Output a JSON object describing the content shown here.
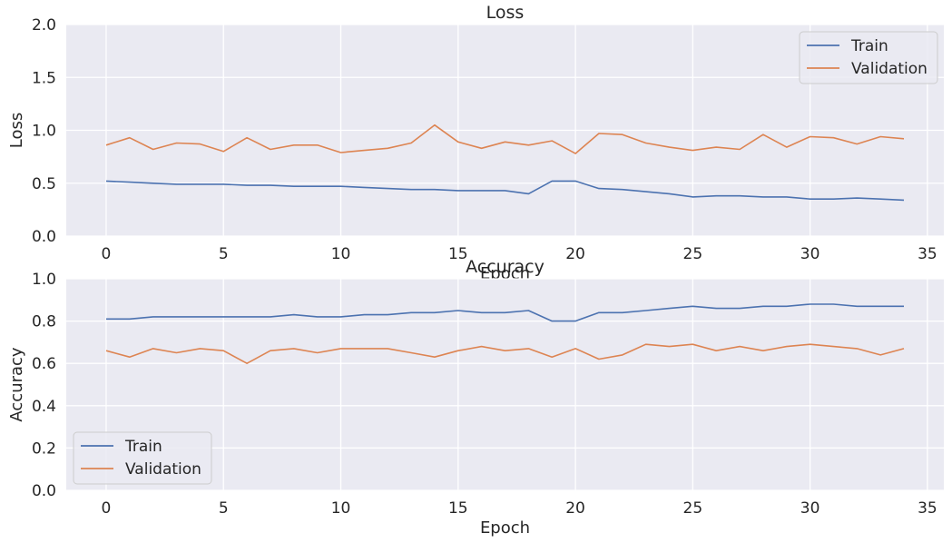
{
  "chart_data": [
    {
      "type": "line",
      "title": "Loss",
      "xlabel": "Epoch",
      "ylabel": "Loss",
      "xlim": [
        -1.7,
        35.7
      ],
      "ylim": [
        0.0,
        2.0
      ],
      "xticks": [
        0,
        5,
        10,
        15,
        20,
        25,
        30,
        35
      ],
      "yticks": [
        "0.0",
        "0.5",
        "1.0",
        "1.5",
        "2.0"
      ],
      "grid": true,
      "legend": "top-right",
      "x": [
        0,
        1,
        2,
        3,
        4,
        5,
        6,
        7,
        8,
        9,
        10,
        11,
        12,
        13,
        14,
        15,
        16,
        17,
        18,
        19,
        20,
        21,
        22,
        23,
        24,
        25,
        26,
        27,
        28,
        29,
        30,
        31,
        32,
        33,
        34
      ],
      "series": [
        {
          "name": "Train",
          "color": "#4c72b0",
          "values": [
            0.52,
            0.51,
            0.5,
            0.49,
            0.49,
            0.49,
            0.48,
            0.48,
            0.47,
            0.47,
            0.47,
            0.46,
            0.45,
            0.44,
            0.44,
            0.43,
            0.43,
            0.43,
            0.4,
            0.52,
            0.52,
            0.45,
            0.44,
            0.42,
            0.4,
            0.37,
            0.38,
            0.38,
            0.37,
            0.37,
            0.35,
            0.35,
            0.36,
            0.35,
            0.34
          ]
        },
        {
          "name": "Validation",
          "color": "#dd8452",
          "values": [
            0.86,
            0.93,
            0.82,
            0.88,
            0.87,
            0.8,
            0.93,
            0.82,
            0.86,
            0.86,
            0.79,
            0.81,
            0.83,
            0.88,
            1.05,
            0.89,
            0.83,
            0.89,
            0.86,
            0.9,
            0.78,
            0.97,
            0.96,
            0.88,
            0.84,
            0.81,
            0.84,
            0.82,
            0.96,
            0.84,
            0.94,
            0.93,
            0.87,
            0.94,
            0.92
          ]
        }
      ]
    },
    {
      "type": "line",
      "title": "Accuracy",
      "xlabel": "Epoch",
      "ylabel": "Accuracy",
      "xlim": [
        -1.7,
        35.7
      ],
      "ylim": [
        0.0,
        1.0
      ],
      "xticks": [
        0,
        5,
        10,
        15,
        20,
        25,
        30,
        35
      ],
      "yticks": [
        "0.0",
        "0.2",
        "0.4",
        "0.6",
        "0.8",
        "1.0"
      ],
      "grid": true,
      "legend": "bottom-left",
      "x": [
        0,
        1,
        2,
        3,
        4,
        5,
        6,
        7,
        8,
        9,
        10,
        11,
        12,
        13,
        14,
        15,
        16,
        17,
        18,
        19,
        20,
        21,
        22,
        23,
        24,
        25,
        26,
        27,
        28,
        29,
        30,
        31,
        32,
        33,
        34
      ],
      "series": [
        {
          "name": "Train",
          "color": "#4c72b0",
          "values": [
            0.81,
            0.81,
            0.82,
            0.82,
            0.82,
            0.82,
            0.82,
            0.82,
            0.83,
            0.82,
            0.82,
            0.83,
            0.83,
            0.84,
            0.84,
            0.85,
            0.84,
            0.84,
            0.85,
            0.8,
            0.8,
            0.84,
            0.84,
            0.85,
            0.86,
            0.87,
            0.86,
            0.86,
            0.87,
            0.87,
            0.88,
            0.88,
            0.87,
            0.87,
            0.87
          ]
        },
        {
          "name": "Validation",
          "color": "#dd8452",
          "values": [
            0.66,
            0.63,
            0.67,
            0.65,
            0.67,
            0.66,
            0.6,
            0.66,
            0.67,
            0.65,
            0.67,
            0.67,
            0.67,
            0.65,
            0.63,
            0.66,
            0.68,
            0.66,
            0.67,
            0.63,
            0.67,
            0.62,
            0.64,
            0.69,
            0.68,
            0.69,
            0.66,
            0.68,
            0.66,
            0.68,
            0.69,
            0.68,
            0.67,
            0.64,
            0.67
          ]
        }
      ]
    }
  ]
}
